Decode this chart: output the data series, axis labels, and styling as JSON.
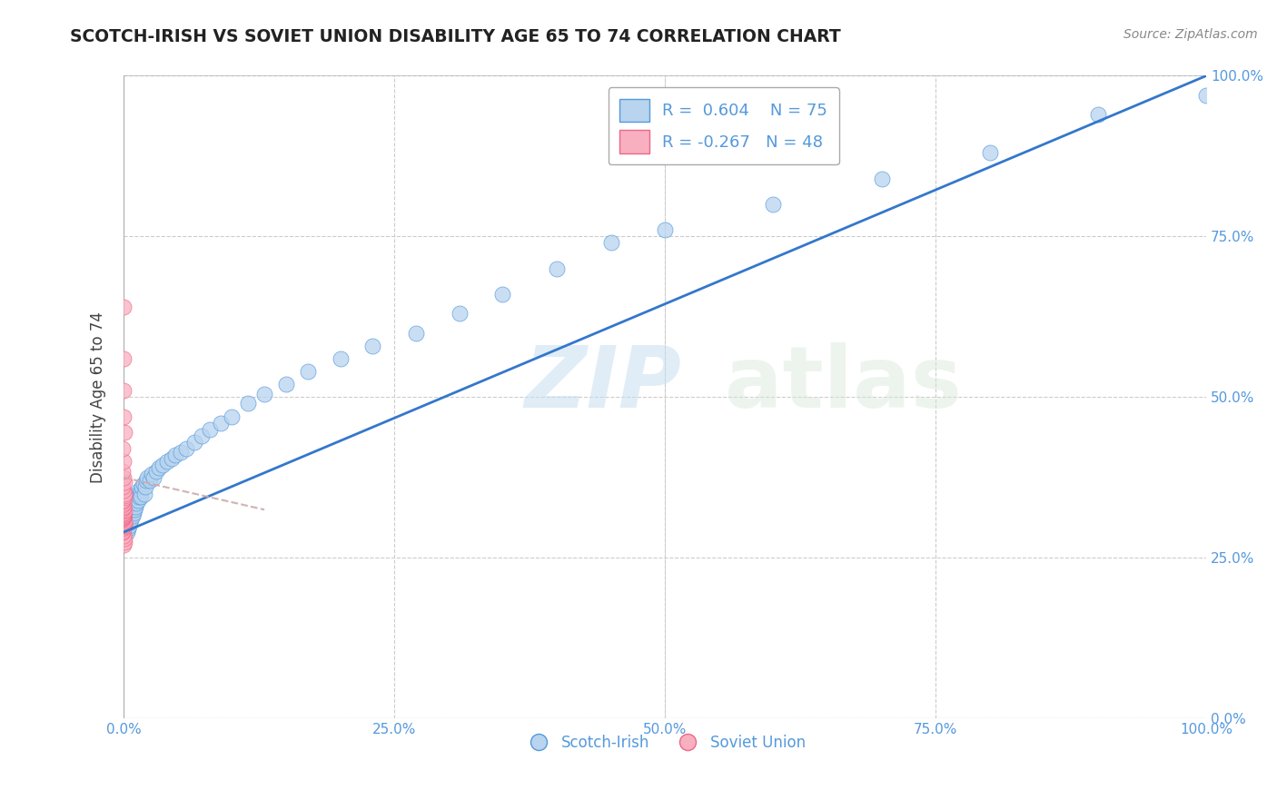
{
  "title": "SCOTCH-IRISH VS SOVIET UNION DISABILITY AGE 65 TO 74 CORRELATION CHART",
  "source": "Source: ZipAtlas.com",
  "ylabel": "Disability Age 65 to 74",
  "r_blue": 0.604,
  "n_blue": 75,
  "r_pink": -0.267,
  "n_pink": 48,
  "blue_color": "#b8d4ee",
  "blue_edge_color": "#5599dd",
  "pink_color": "#f8b0c0",
  "pink_edge_color": "#ee6688",
  "pink_line_color": "#ccaaaa",
  "legend_label_blue": "Scotch-Irish",
  "legend_label_pink": "Soviet Union",
  "watermark_zip": "ZIP",
  "watermark_atlas": "atlas",
  "blue_scatter_x": [
    0.001,
    0.002,
    0.002,
    0.003,
    0.003,
    0.004,
    0.004,
    0.004,
    0.005,
    0.005,
    0.005,
    0.006,
    0.006,
    0.006,
    0.007,
    0.007,
    0.007,
    0.008,
    0.008,
    0.008,
    0.009,
    0.009,
    0.009,
    0.01,
    0.01,
    0.011,
    0.011,
    0.012,
    0.012,
    0.013,
    0.013,
    0.014,
    0.014,
    0.015,
    0.016,
    0.016,
    0.017,
    0.018,
    0.019,
    0.02,
    0.021,
    0.022,
    0.024,
    0.026,
    0.028,
    0.03,
    0.033,
    0.036,
    0.04,
    0.044,
    0.048,
    0.053,
    0.058,
    0.065,
    0.072,
    0.08,
    0.09,
    0.1,
    0.115,
    0.13,
    0.15,
    0.17,
    0.2,
    0.23,
    0.27,
    0.31,
    0.35,
    0.4,
    0.45,
    0.5,
    0.6,
    0.7,
    0.8,
    0.9,
    1.0
  ],
  "blue_scatter_y": [
    0.295,
    0.3,
    0.305,
    0.29,
    0.31,
    0.295,
    0.305,
    0.315,
    0.3,
    0.31,
    0.32,
    0.305,
    0.315,
    0.325,
    0.31,
    0.32,
    0.33,
    0.315,
    0.325,
    0.33,
    0.32,
    0.33,
    0.34,
    0.325,
    0.335,
    0.33,
    0.34,
    0.335,
    0.345,
    0.34,
    0.35,
    0.345,
    0.355,
    0.35,
    0.355,
    0.345,
    0.36,
    0.365,
    0.35,
    0.36,
    0.37,
    0.375,
    0.37,
    0.38,
    0.375,
    0.385,
    0.39,
    0.395,
    0.4,
    0.405,
    0.41,
    0.415,
    0.42,
    0.43,
    0.44,
    0.45,
    0.46,
    0.47,
    0.49,
    0.505,
    0.52,
    0.54,
    0.56,
    0.58,
    0.6,
    0.63,
    0.66,
    0.7,
    0.74,
    0.76,
    0.8,
    0.84,
    0.88,
    0.94,
    0.97
  ],
  "pink_scatter_x": [
    0.0,
    0.0,
    0.0,
    0.0,
    0.0,
    0.0,
    0.0,
    0.0,
    0.0,
    0.0,
    0.0,
    0.0,
    0.0,
    0.0,
    0.0,
    0.0,
    0.0,
    0.0,
    0.0,
    0.0,
    0.0,
    0.0,
    0.0,
    0.0,
    0.0,
    0.0,
    0.0,
    0.0,
    0.0,
    0.0,
    0.0,
    0.0,
    0.0,
    0.0,
    0.0,
    0.0,
    0.0,
    0.0,
    0.0,
    0.0,
    0.0,
    0.0,
    0.0,
    0.0,
    0.0,
    0.0,
    0.0,
    0.0
  ],
  "pink_scatter_y": [
    0.27,
    0.275,
    0.28,
    0.285,
    0.29,
    0.292,
    0.295,
    0.298,
    0.3,
    0.302,
    0.304,
    0.306,
    0.308,
    0.31,
    0.311,
    0.312,
    0.313,
    0.314,
    0.315,
    0.316,
    0.317,
    0.318,
    0.319,
    0.32,
    0.322,
    0.324,
    0.326,
    0.328,
    0.33,
    0.332,
    0.335,
    0.338,
    0.34,
    0.343,
    0.346,
    0.35,
    0.355,
    0.36,
    0.368,
    0.375,
    0.385,
    0.4,
    0.42,
    0.445,
    0.47,
    0.51,
    0.56,
    0.64
  ],
  "xlim": [
    0.0,
    1.0
  ],
  "ylim": [
    0.0,
    1.0
  ],
  "xtick_vals": [
    0.0,
    0.25,
    0.5,
    0.75,
    1.0
  ],
  "xtick_labels": [
    "0.0%",
    "25.0%",
    "50.0%",
    "75.0%",
    "100.0%"
  ],
  "ytick_vals": [
    0.0,
    0.25,
    0.5,
    0.75,
    1.0
  ],
  "ytick_labels_right": [
    "0.0%",
    "25.0%",
    "50.0%",
    "75.0%",
    "100.0%"
  ],
  "background_color": "#ffffff",
  "grid_color": "#cccccc",
  "blue_line_color": "#3377cc",
  "tick_color": "#5599dd",
  "title_color": "#222222",
  "source_color": "#888888"
}
